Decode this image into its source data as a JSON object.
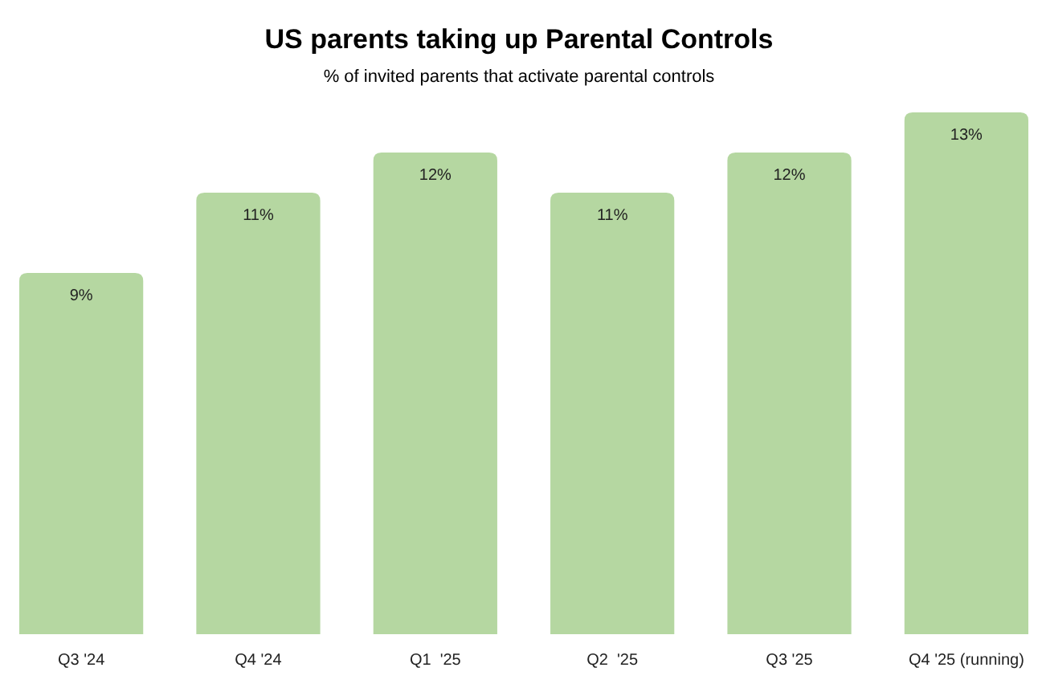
{
  "chart_data": {
    "type": "bar",
    "title": "US parents taking up Parental Controls",
    "subtitle": "% of invited parents that activate parental controls",
    "categories": [
      "Q3 '24",
      "Q4 '24",
      "Q1  '25",
      "Q2  '25",
      "Q3 '25",
      "Q4 '25 (running)"
    ],
    "values": [
      9,
      11,
      12,
      11,
      12,
      13
    ],
    "value_labels": [
      "9%",
      "11%",
      "12%",
      "11%",
      "12%",
      "13%"
    ],
    "color": "#b5d7a1",
    "relative": false
  }
}
